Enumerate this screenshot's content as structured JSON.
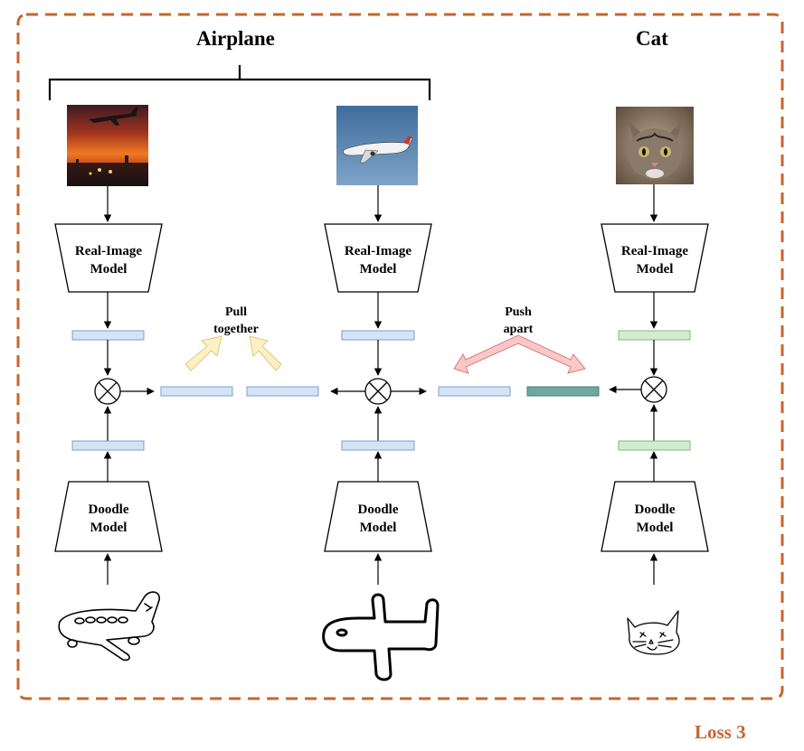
{
  "groups": {
    "airplane": "Airplane",
    "cat": "Cat"
  },
  "models": {
    "real_image": [
      "Real-Image",
      "Model"
    ],
    "doodle": [
      "Doodle",
      "Model"
    ]
  },
  "annotations": {
    "pull": [
      "Pull",
      "together"
    ],
    "push": [
      "Push",
      "apart"
    ]
  },
  "loss_label": "Loss 3",
  "colors": {
    "frame": "#c8652b",
    "loss_text": "#c8652b",
    "blue_feature": "#d4e3f7",
    "blue_feature_border": "#7e9fc9",
    "green_feature": "#d3ecd1",
    "green_feature_border": "#80b87b",
    "teal_feature": "#6fa89e",
    "teal_feature_border": "#3f7f74",
    "pull_arrow": "#fdf0c6",
    "pull_arrow_border": "#e0c877",
    "push_arrow": "#f8c8c8",
    "push_arrow_border": "#d97b7b"
  },
  "icons": [
    "sunset-airplane-photo",
    "airliner-photo",
    "kitten-photo",
    "airplane-doodle",
    "airplane-doodle-bold",
    "cat-doodle",
    "multiply-circle-icon"
  ]
}
